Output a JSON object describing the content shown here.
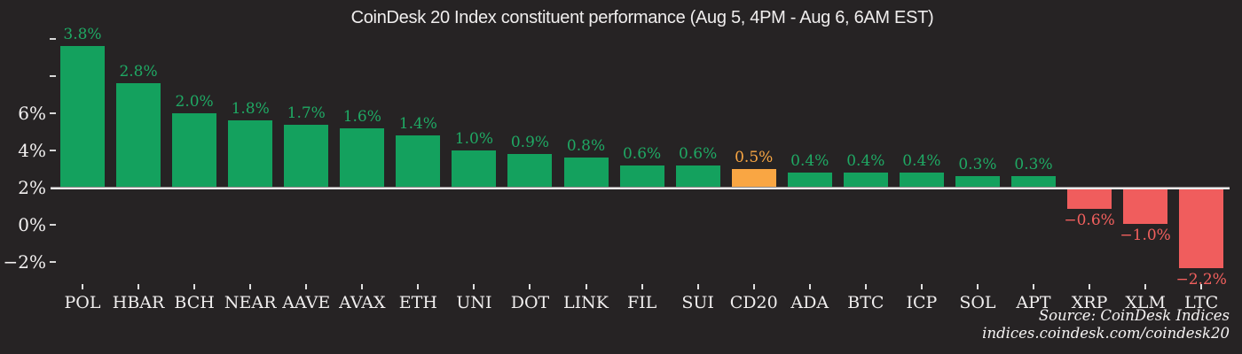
{
  "chart_data": {
    "type": "bar",
    "title": "CoinDesk 20 Index constituent performance (Aug 5, 4PM - Aug 6, 6AM EST)",
    "categories": [
      "POL",
      "HBAR",
      "BCH",
      "NEAR",
      "AAVE",
      "AVAX",
      "ETH",
      "UNI",
      "DOT",
      "LINK",
      "FIL",
      "SUI",
      "CD20",
      "ADA",
      "BTC",
      "ICP",
      "SOL",
      "APT",
      "XRP",
      "XLM",
      "LTC"
    ],
    "values": [
      3.8,
      2.8,
      2.0,
      1.8,
      1.7,
      1.6,
      1.4,
      1.0,
      0.9,
      0.8,
      0.6,
      0.6,
      0.5,
      0.4,
      0.4,
      0.4,
      0.3,
      0.3,
      -0.6,
      -1.0,
      -2.2
    ],
    "value_labels": [
      "3.8%",
      "2.8%",
      "2.0%",
      "1.8%",
      "1.7%",
      "1.6%",
      "1.4%",
      "1.0%",
      "0.9%",
      "0.8%",
      "0.6%",
      "0.6%",
      "0.5%",
      "0.4%",
      "0.4%",
      "0.4%",
      "0.3%",
      "0.3%",
      "−0.6%",
      "−1.0%",
      "−2.2%"
    ],
    "highlight_category": "CD20",
    "xlabel": "",
    "ylabel": "",
    "y_axis": {
      "tick_labels": [
        "",
        "",
        "6%",
        "4%",
        "2%",
        "0%",
        "−2%"
      ],
      "baseline_at_label": "2%",
      "grid": "off",
      "note_axis_range_shown": [
        -2,
        10
      ]
    },
    "legend": "none",
    "colors": {
      "positive_bar": "#14a15e",
      "positive_label": "#1fa964",
      "negative_bar": "#f05d5d",
      "negative_label": "#f2605e",
      "highlight_bar": "#f9a643",
      "highlight_label": "#f9a643",
      "background": "#262324",
      "axis_text": "#f3f1f1",
      "baseline": "#ededed"
    },
    "source_line1": "Source: CoinDesk Indices",
    "source_line2": "indices.coindesk.com/coindesk20"
  }
}
